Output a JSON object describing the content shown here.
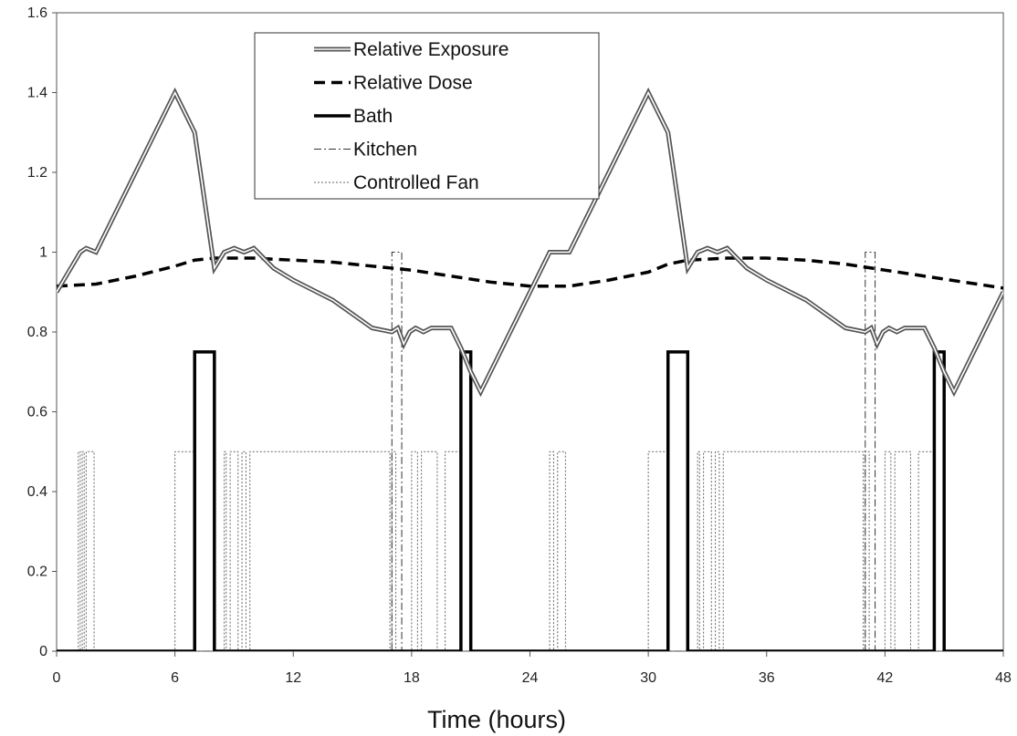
{
  "chart_data": {
    "type": "line",
    "xlabel": "Time (hours)",
    "ylabel": "",
    "xlim": [
      0,
      48
    ],
    "ylim": [
      0,
      1.6
    ],
    "x_ticks": [
      "0",
      "6",
      "12",
      "18",
      "24",
      "30",
      "36",
      "42",
      "48"
    ],
    "y_ticks": [
      "0",
      "0.2",
      "0.4",
      "0.6",
      "0.8",
      "1",
      "1.2",
      "1.4",
      "1.6"
    ],
    "grid": false,
    "legend_position": "top-center",
    "series": [
      {
        "name": "Relative Exposure",
        "style": "double-line",
        "color": "#555555",
        "points": [
          [
            0,
            0.9
          ],
          [
            1.2,
            1.0
          ],
          [
            1.5,
            1.01
          ],
          [
            2,
            1.0
          ],
          [
            6,
            1.4
          ],
          [
            7,
            1.3
          ],
          [
            8,
            0.96
          ],
          [
            8.5,
            1.0
          ],
          [
            9,
            1.01
          ],
          [
            9.5,
            1.0
          ],
          [
            10,
            1.01
          ],
          [
            11,
            0.96
          ],
          [
            12,
            0.93
          ],
          [
            14,
            0.88
          ],
          [
            16,
            0.81
          ],
          [
            17,
            0.8
          ],
          [
            17.3,
            0.81
          ],
          [
            17.6,
            0.77
          ],
          [
            17.9,
            0.8
          ],
          [
            18.2,
            0.81
          ],
          [
            18.6,
            0.8
          ],
          [
            19,
            0.81
          ],
          [
            20,
            0.81
          ],
          [
            20.5,
            0.76
          ],
          [
            21,
            0.7
          ],
          [
            21.5,
            0.65
          ],
          [
            25,
            1.0
          ],
          [
            26,
            1.0
          ],
          [
            27,
            1.1
          ],
          [
            30,
            1.4
          ],
          [
            31,
            1.3
          ],
          [
            32,
            0.96
          ],
          [
            32.5,
            1.0
          ],
          [
            33,
            1.01
          ],
          [
            33.5,
            1.0
          ],
          [
            34,
            1.01
          ],
          [
            35,
            0.96
          ],
          [
            36,
            0.93
          ],
          [
            38,
            0.88
          ],
          [
            40,
            0.81
          ],
          [
            41,
            0.8
          ],
          [
            41.3,
            0.81
          ],
          [
            41.6,
            0.77
          ],
          [
            41.9,
            0.8
          ],
          [
            42.2,
            0.81
          ],
          [
            42.6,
            0.8
          ],
          [
            43,
            0.81
          ],
          [
            44,
            0.81
          ],
          [
            44.5,
            0.76
          ],
          [
            45,
            0.7
          ],
          [
            45.5,
            0.65
          ],
          [
            48,
            0.9
          ]
        ]
      },
      {
        "name": "Relative Dose",
        "style": "dashed-thick",
        "color": "#000000",
        "points": [
          [
            0,
            0.915
          ],
          [
            2,
            0.92
          ],
          [
            4,
            0.94
          ],
          [
            6,
            0.965
          ],
          [
            7,
            0.98
          ],
          [
            8,
            0.985
          ],
          [
            10,
            0.985
          ],
          [
            12,
            0.98
          ],
          [
            14,
            0.975
          ],
          [
            16,
            0.965
          ],
          [
            18,
            0.955
          ],
          [
            20,
            0.94
          ],
          [
            22,
            0.925
          ],
          [
            24,
            0.915
          ],
          [
            26,
            0.915
          ],
          [
            28,
            0.93
          ],
          [
            30,
            0.95
          ],
          [
            31,
            0.97
          ],
          [
            32,
            0.98
          ],
          [
            34,
            0.985
          ],
          [
            36,
            0.985
          ],
          [
            38,
            0.98
          ],
          [
            40,
            0.97
          ],
          [
            42,
            0.955
          ],
          [
            44,
            0.94
          ],
          [
            46,
            0.925
          ],
          [
            48,
            0.91
          ]
        ]
      },
      {
        "name": "Bath",
        "style": "solid-thick",
        "color": "#000000",
        "points": [
          [
            0,
            0
          ],
          [
            7,
            0
          ],
          [
            7,
            0.75
          ],
          [
            8,
            0.75
          ],
          [
            8,
            0
          ],
          [
            20.5,
            0
          ],
          [
            20.5,
            0.75
          ],
          [
            21,
            0.75
          ],
          [
            21,
            0
          ],
          [
            31,
            0
          ],
          [
            31,
            0.75
          ],
          [
            32,
            0.75
          ],
          [
            32,
            0
          ],
          [
            44.5,
            0
          ],
          [
            44.5,
            0.75
          ],
          [
            45,
            0.75
          ],
          [
            45,
            0
          ],
          [
            48,
            0
          ]
        ]
      },
      {
        "name": "Kitchen",
        "style": "dash-dot-thin",
        "color": "#333333",
        "points": [
          [
            0,
            0
          ],
          [
            17,
            0
          ],
          [
            17,
            1.0
          ],
          [
            17.5,
            1.0
          ],
          [
            17.5,
            0
          ],
          [
            41,
            0
          ],
          [
            41,
            1.0
          ],
          [
            41.5,
            1.0
          ],
          [
            41.5,
            0
          ],
          [
            48,
            0
          ]
        ]
      },
      {
        "name": "Controlled Fan",
        "style": "dotted-thin",
        "color": "#555555",
        "points": [
          [
            0,
            0
          ],
          [
            1.1,
            0
          ],
          [
            1.1,
            0.5
          ],
          [
            1.2,
            0.5
          ],
          [
            1.2,
            0
          ],
          [
            1.3,
            0
          ],
          [
            1.3,
            0.5
          ],
          [
            1.4,
            0.5
          ],
          [
            1.4,
            0
          ],
          [
            1.5,
            0
          ],
          [
            1.5,
            0.5
          ],
          [
            1.9,
            0.5
          ],
          [
            1.9,
            0
          ],
          [
            6,
            0
          ],
          [
            6,
            0.5
          ],
          [
            7,
            0.5
          ],
          [
            7,
            0
          ],
          [
            8.5,
            0
          ],
          [
            8.5,
            0.5
          ],
          [
            8.6,
            0.5
          ],
          [
            8.6,
            0
          ],
          [
            8.8,
            0
          ],
          [
            8.8,
            0.5
          ],
          [
            9.2,
            0.5
          ],
          [
            9.2,
            0
          ],
          [
            9.4,
            0
          ],
          [
            9.4,
            0.5
          ],
          [
            9.6,
            0.5
          ],
          [
            9.6,
            0
          ],
          [
            9.8,
            0
          ],
          [
            9.8,
            0.5
          ],
          [
            16.9,
            0.5
          ],
          [
            16.9,
            0
          ],
          [
            17,
            0
          ],
          [
            17,
            0.5
          ],
          [
            17.2,
            0.5
          ],
          [
            17.2,
            0
          ],
          [
            18,
            0
          ],
          [
            18,
            0.5
          ],
          [
            18.3,
            0.5
          ],
          [
            18.3,
            0
          ],
          [
            18.5,
            0
          ],
          [
            18.5,
            0.5
          ],
          [
            19.3,
            0.5
          ],
          [
            19.3,
            0
          ],
          [
            19.7,
            0
          ],
          [
            19.7,
            0.5
          ],
          [
            20.5,
            0.5
          ],
          [
            20.5,
            0
          ],
          [
            25,
            0
          ],
          [
            25,
            0.5
          ],
          [
            25.2,
            0.5
          ],
          [
            25.2,
            0
          ],
          [
            25.4,
            0
          ],
          [
            25.4,
            0.5
          ],
          [
            25.8,
            0.5
          ],
          [
            25.8,
            0
          ],
          [
            30,
            0
          ],
          [
            30,
            0.5
          ],
          [
            31,
            0.5
          ],
          [
            31,
            0
          ],
          [
            32.5,
            0
          ],
          [
            32.5,
            0.5
          ],
          [
            32.6,
            0.5
          ],
          [
            32.6,
            0
          ],
          [
            32.8,
            0
          ],
          [
            32.8,
            0.5
          ],
          [
            33.2,
            0.5
          ],
          [
            33.2,
            0
          ],
          [
            33.4,
            0
          ],
          [
            33.4,
            0.5
          ],
          [
            33.6,
            0.5
          ],
          [
            33.6,
            0
          ],
          [
            33.8,
            0
          ],
          [
            33.8,
            0.5
          ],
          [
            40.9,
            0.5
          ],
          [
            40.9,
            0
          ],
          [
            41,
            0
          ],
          [
            41,
            0.5
          ],
          [
            41.2,
            0.5
          ],
          [
            41.2,
            0
          ],
          [
            42,
            0
          ],
          [
            42,
            0.5
          ],
          [
            42.3,
            0.5
          ],
          [
            42.3,
            0
          ],
          [
            42.5,
            0
          ],
          [
            42.5,
            0.5
          ],
          [
            43.3,
            0.5
          ],
          [
            43.3,
            0
          ],
          [
            43.7,
            0
          ],
          [
            43.7,
            0.5
          ],
          [
            44.5,
            0.5
          ],
          [
            44.5,
            0
          ],
          [
            48,
            0
          ]
        ]
      }
    ]
  }
}
